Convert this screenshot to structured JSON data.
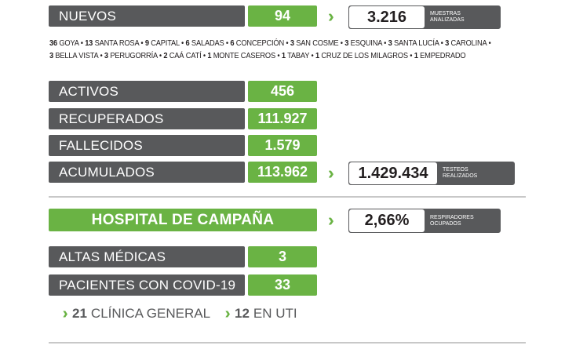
{
  "nuevos": {
    "label": "NUEVOS",
    "value": "94"
  },
  "muestras": {
    "value": "3.216",
    "label_line1": "MUESTRAS",
    "label_line2": "ANALIZADAS"
  },
  "detail": {
    "line1": [
      {
        "n": "36",
        "place": "GOYA"
      },
      {
        "n": "13",
        "place": "SANTA ROSA"
      },
      {
        "n": "9",
        "place": "CAPITAL"
      },
      {
        "n": "6",
        "place": "SALADAS"
      },
      {
        "n": "6",
        "place": "CONCEPCIÓN"
      },
      {
        "n": "3",
        "place": "SAN COSME"
      },
      {
        "n": "3",
        "place": "ESQUINA"
      },
      {
        "n": "3",
        "place": "SANTA LUCÍA"
      },
      {
        "n": "3",
        "place": "CAROLINA"
      }
    ],
    "line2": [
      {
        "n": "3",
        "place": "BELLA VISTA"
      },
      {
        "n": "3",
        "place": "PERUGORRÍA"
      },
      {
        "n": "2",
        "place": "CAÁ CATÍ"
      },
      {
        "n": "1",
        "place": "MONTE CASEROS"
      },
      {
        "n": "1",
        "place": "TABAY"
      },
      {
        "n": "1",
        "place": "CRUZ DE LOS MILAGROS"
      },
      {
        "n": "1",
        "place": "EMPEDRADO"
      }
    ]
  },
  "activos": {
    "label": "ACTIVOS",
    "value": "456"
  },
  "recuperados": {
    "label": "RECUPERADOS",
    "value": "111.927"
  },
  "fallecidos": {
    "label": "FALLECIDOS",
    "value": "1.579"
  },
  "acumulados": {
    "label": "ACUMULADOS",
    "value": "113.962"
  },
  "testeos": {
    "value": "1.429.434",
    "label_line1": "TESTEOS",
    "label_line2": "REALIZADOS"
  },
  "hospital": {
    "title": "HOSPITAL DE CAMPAÑA"
  },
  "respiradores": {
    "value": "2,66%",
    "label_line1": "RESPIRADORES",
    "label_line2": "OCUPADOS"
  },
  "altas": {
    "label": "ALTAS MÉDICAS",
    "value": "3"
  },
  "pacientes": {
    "label": "PACIENTES CON COVID-19",
    "value": "33"
  },
  "clinica": {
    "n": "21",
    "label": "CLÍNICA GENERAL"
  },
  "uti": {
    "n": "12",
    "label": "EN UTI"
  },
  "colors": {
    "gray": "#58595b",
    "green": "#6ab344",
    "divider": "#c8c8c8"
  },
  "icons": {
    "arrow": "double-chevron-right-icon"
  }
}
